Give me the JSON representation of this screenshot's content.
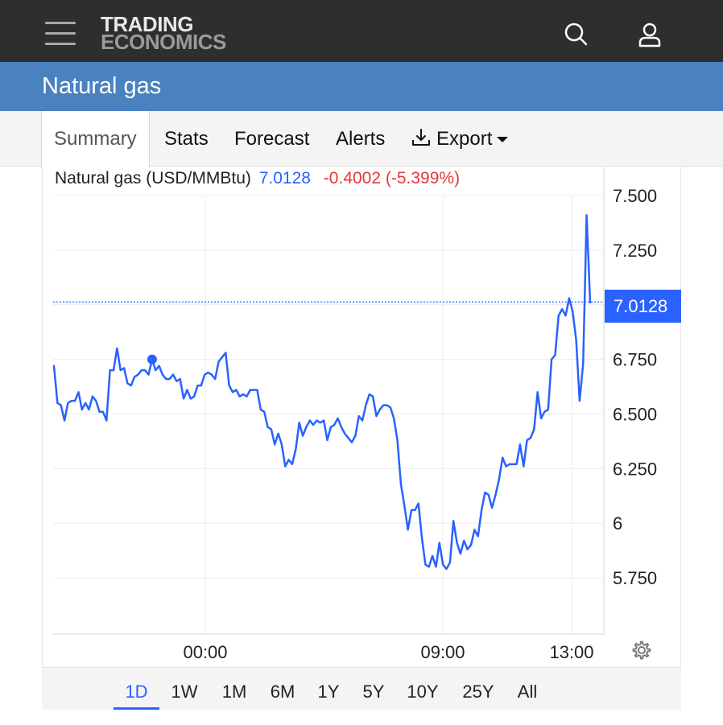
{
  "header": {
    "logo_line1": "TRADING",
    "logo_line2": "ECONOMICS",
    "menu_icon": "hamburger-menu-icon",
    "search_icon": "search-icon",
    "user_icon": "user-icon"
  },
  "page": {
    "title": "Natural gas"
  },
  "tabs": [
    {
      "label": "Summary",
      "active": true
    },
    {
      "label": "Stats"
    },
    {
      "label": "Forecast"
    },
    {
      "label": "Alerts"
    },
    {
      "label": "Export",
      "icon": "download-icon",
      "dropdown": true
    }
  ],
  "legend": {
    "instrument": "Natural gas (USD/MMBtu)",
    "last": "7.0128",
    "change": "-0.4002 (-5.399%)"
  },
  "colors": {
    "line": "#2962ff",
    "negative": "#e53935",
    "header_bg": "#2e2e2e",
    "title_bg": "#4a82c0"
  },
  "chart_data": {
    "type": "line",
    "series": [
      {
        "values": [
          6.72,
          6.55,
          6.54,
          6.47,
          6.55,
          6.56,
          6.56,
          6.6,
          6.52,
          6.55,
          6.52,
          6.58,
          6.56,
          6.51,
          6.51,
          6.47,
          6.7,
          6.7,
          6.8,
          6.7,
          6.71,
          6.64,
          6.63,
          6.67,
          6.68,
          6.7,
          6.7,
          6.68,
          6.75,
          6.7,
          6.72,
          6.68,
          6.66,
          6.66,
          6.68,
          6.65,
          6.66,
          6.57,
          6.61,
          6.57,
          6.58,
          6.63,
          6.63,
          6.68,
          6.69,
          6.68,
          6.66,
          6.74,
          6.76,
          6.78,
          6.63,
          6.6,
          6.61,
          6.58,
          6.59,
          6.58,
          6.61,
          6.61,
          6.61,
          6.52,
          6.51,
          6.44,
          6.43,
          6.36,
          6.41,
          6.36,
          6.26,
          6.29,
          6.27,
          6.34,
          6.46,
          6.4,
          6.44,
          6.47,
          6.45,
          6.47,
          6.46,
          6.47,
          6.38,
          6.44,
          6.45,
          6.48,
          6.44,
          6.41,
          6.39,
          6.37,
          6.4,
          6.49,
          6.47,
          6.54,
          6.59,
          6.58,
          6.49,
          6.52,
          6.54,
          6.54,
          6.53,
          6.48,
          6.38,
          6.18,
          6.08,
          5.97,
          6.06,
          6.06,
          6.09,
          5.93,
          5.81,
          5.8,
          5.85,
          5.8,
          5.91,
          5.81,
          5.79,
          5.82,
          6.01,
          5.91,
          5.86,
          5.92,
          5.88,
          5.9,
          5.97,
          5.94,
          6.06,
          6.14,
          6.13,
          6.07,
          6.13,
          6.2,
          6.3,
          6.26,
          6.27,
          6.27,
          6.27,
          6.36,
          6.26,
          6.38,
          6.39,
          6.43,
          6.6,
          6.48,
          6.51,
          6.52,
          6.75,
          6.77,
          6.95,
          6.98,
          6.95,
          7.03,
          6.97,
          6.84,
          6.56,
          6.73,
          7.41,
          7.01
        ]
      }
    ],
    "x_tick_labels": [
      "00:00",
      "09:00",
      "13:00"
    ],
    "y_tick_labels": [
      "7.500",
      "7.250",
      "6.750",
      "6.500",
      "6.250",
      "6",
      "5.750"
    ],
    "ylim": [
      5.5,
      7.5
    ],
    "last_value": 7.0128,
    "grid": true
  },
  "ranges": [
    "1D",
    "1W",
    "1M",
    "6M",
    "1Y",
    "5Y",
    "10Y",
    "25Y",
    "All"
  ],
  "active_range": "1D",
  "settings_icon": "gear-icon"
}
